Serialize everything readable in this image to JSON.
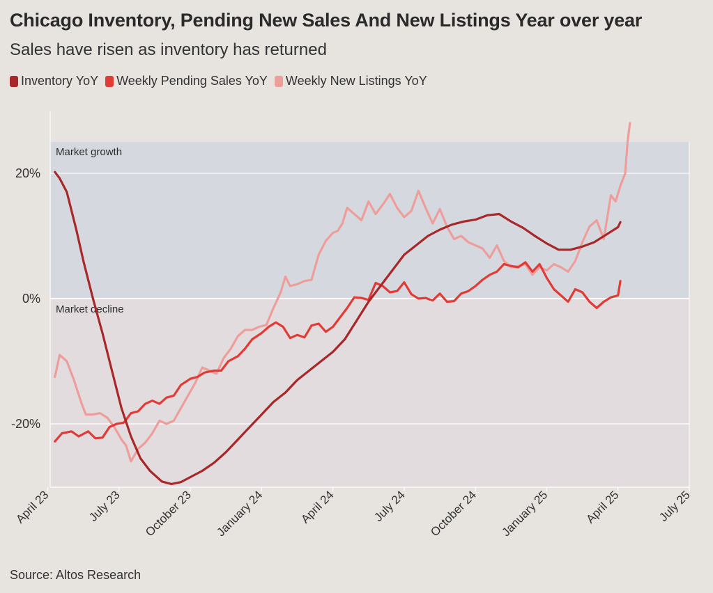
{
  "chart_data": {
    "type": "line",
    "title": "Chicago Inventory, Pending New Sales And New Listings Year over year",
    "subtitle": "Sales have risen as inventory has returned",
    "source": "Source: Altos Research",
    "xlabel": "",
    "ylabel": "",
    "xlim": [
      0,
      27
    ],
    "ylim": [
      -30,
      30
    ],
    "x_ticks": [
      {
        "label": "April 23",
        "x": 0
      },
      {
        "label": "July 23",
        "x": 3
      },
      {
        "label": "October 23",
        "x": 6
      },
      {
        "label": "January 24",
        "x": 9
      },
      {
        "label": "April 24",
        "x": 12
      },
      {
        "label": "July 24",
        "x": 15
      },
      {
        "label": "October 24",
        "x": 18
      },
      {
        "label": "January 25",
        "x": 21
      },
      {
        "label": "April 25",
        "x": 24
      },
      {
        "label": "July 25",
        "x": 27
      }
    ],
    "y_ticks": [
      {
        "label": "20%",
        "value": 20
      },
      {
        "label": "0%",
        "value": 0
      },
      {
        "label": "-20%",
        "value": -20
      }
    ],
    "regions": [
      {
        "label": "Market growth",
        "from": 0,
        "to": 25,
        "color": "#d5d9df"
      },
      {
        "label": "Market decline",
        "from": -30,
        "to": 0,
        "color": "#e2dcdf"
      }
    ],
    "legend": [
      "Inventory YoY",
      "Weekly Pending Sales YoY",
      "Weekly New Listings YoY"
    ],
    "series": [
      {
        "name": "Inventory YoY",
        "color": "#a82729",
        "points": [
          [
            0.3,
            20.2
          ],
          [
            0.5,
            19.2
          ],
          [
            0.8,
            17
          ],
          [
            1.2,
            11
          ],
          [
            1.5,
            6
          ],
          [
            1.9,
            0
          ],
          [
            2.3,
            -5.5
          ],
          [
            2.7,
            -11.5
          ],
          [
            3.1,
            -17.5
          ],
          [
            3.5,
            -22
          ],
          [
            3.9,
            -25.5
          ],
          [
            4.3,
            -27.5
          ],
          [
            4.8,
            -29.2
          ],
          [
            5.2,
            -29.6
          ],
          [
            5.6,
            -29.3
          ],
          [
            6.0,
            -28.5
          ],
          [
            6.5,
            -27.5
          ],
          [
            7.0,
            -26.2
          ],
          [
            7.5,
            -24.5
          ],
          [
            8.0,
            -22.5
          ],
          [
            8.5,
            -20.5
          ],
          [
            9.0,
            -18.5
          ],
          [
            9.5,
            -16.5
          ],
          [
            10.0,
            -15
          ],
          [
            10.5,
            -13
          ],
          [
            11.0,
            -11.5
          ],
          [
            11.5,
            -10
          ],
          [
            12.0,
            -8.5
          ],
          [
            12.5,
            -6.5
          ],
          [
            13.0,
            -3.5
          ],
          [
            13.5,
            -0.5
          ],
          [
            14.0,
            2
          ],
          [
            14.5,
            4.5
          ],
          [
            15.0,
            7
          ],
          [
            15.5,
            8.5
          ],
          [
            16.0,
            10
          ],
          [
            16.5,
            11
          ],
          [
            17.0,
            11.8
          ],
          [
            17.5,
            12.3
          ],
          [
            18.0,
            12.6
          ],
          [
            18.5,
            13.3
          ],
          [
            19.0,
            13.5
          ],
          [
            19.5,
            12.3
          ],
          [
            20.0,
            11.3
          ],
          [
            20.5,
            10
          ],
          [
            21.0,
            8.8
          ],
          [
            21.5,
            7.8
          ],
          [
            22.0,
            7.8
          ],
          [
            22.5,
            8.3
          ],
          [
            23.0,
            9
          ],
          [
            23.5,
            10.2
          ],
          [
            24.0,
            11.4
          ],
          [
            24.1,
            12.2
          ]
        ]
      },
      {
        "name": "Weekly Pending Sales YoY",
        "color": "#e23a35",
        "points": [
          [
            0.3,
            -22.8
          ],
          [
            0.6,
            -21.5
          ],
          [
            1.0,
            -21.2
          ],
          [
            1.3,
            -22
          ],
          [
            1.7,
            -21.2
          ],
          [
            2.0,
            -22.3
          ],
          [
            2.3,
            -22.2
          ],
          [
            2.6,
            -20.5
          ],
          [
            2.9,
            -20
          ],
          [
            3.2,
            -19.8
          ],
          [
            3.5,
            -18.3
          ],
          [
            3.8,
            -18
          ],
          [
            4.1,
            -16.8
          ],
          [
            4.4,
            -16.3
          ],
          [
            4.7,
            -16.8
          ],
          [
            5.0,
            -15.8
          ],
          [
            5.3,
            -15.5
          ],
          [
            5.6,
            -13.8
          ],
          [
            6.0,
            -12.8
          ],
          [
            6.3,
            -12.5
          ],
          [
            6.6,
            -11.8
          ],
          [
            7.0,
            -11.5
          ],
          [
            7.3,
            -11.5
          ],
          [
            7.6,
            -10
          ],
          [
            8.0,
            -9.2
          ],
          [
            8.3,
            -8
          ],
          [
            8.6,
            -6.5
          ],
          [
            9.0,
            -5.5
          ],
          [
            9.3,
            -4.5
          ],
          [
            9.6,
            -3.8
          ],
          [
            9.9,
            -4.5
          ],
          [
            10.2,
            -6.3
          ],
          [
            10.5,
            -5.8
          ],
          [
            10.8,
            -6.2
          ],
          [
            11.1,
            -4.3
          ],
          [
            11.4,
            -4
          ],
          [
            11.7,
            -5.3
          ],
          [
            12.0,
            -4.5
          ],
          [
            12.3,
            -3
          ],
          [
            12.6,
            -1.5
          ],
          [
            12.9,
            0.2
          ],
          [
            13.2,
            0.1
          ],
          [
            13.5,
            -0.2
          ],
          [
            13.8,
            2.5
          ],
          [
            14.1,
            2
          ],
          [
            14.4,
            1
          ],
          [
            14.7,
            1.2
          ],
          [
            15.0,
            2.6
          ],
          [
            15.3,
            0.7
          ],
          [
            15.6,
            0
          ],
          [
            15.9,
            0.1
          ],
          [
            16.2,
            -0.3
          ],
          [
            16.5,
            0.8
          ],
          [
            16.8,
            -0.5
          ],
          [
            17.1,
            -0.4
          ],
          [
            17.4,
            0.8
          ],
          [
            17.7,
            1.2
          ],
          [
            18.0,
            2
          ],
          [
            18.3,
            3
          ],
          [
            18.6,
            3.8
          ],
          [
            18.9,
            4.3
          ],
          [
            19.2,
            5.5
          ],
          [
            19.5,
            5.2
          ],
          [
            19.8,
            5
          ],
          [
            20.1,
            5.8
          ],
          [
            20.4,
            4.3
          ],
          [
            20.7,
            5.5
          ],
          [
            21.0,
            3.3
          ],
          [
            21.3,
            1.5
          ],
          [
            21.6,
            0.5
          ],
          [
            21.9,
            -0.5
          ],
          [
            22.2,
            1.5
          ],
          [
            22.5,
            1
          ],
          [
            22.8,
            -0.5
          ],
          [
            23.1,
            -1.5
          ],
          [
            23.4,
            -0.5
          ],
          [
            23.7,
            0.2
          ],
          [
            24.0,
            0.5
          ],
          [
            24.1,
            2.8
          ]
        ]
      },
      {
        "name": "Weekly New Listings YoY",
        "color": "#ee9e9a",
        "points": [
          [
            0.3,
            -12.5
          ],
          [
            0.5,
            -9
          ],
          [
            0.8,
            -10
          ],
          [
            1.1,
            -13
          ],
          [
            1.4,
            -16.5
          ],
          [
            1.6,
            -18.5
          ],
          [
            1.9,
            -18.5
          ],
          [
            2.2,
            -18.3
          ],
          [
            2.5,
            -19
          ],
          [
            2.8,
            -20.5
          ],
          [
            3.1,
            -22.5
          ],
          [
            3.3,
            -23.5
          ],
          [
            3.5,
            -26
          ],
          [
            3.8,
            -24
          ],
          [
            4.1,
            -23
          ],
          [
            4.4,
            -21.5
          ],
          [
            4.7,
            -19.5
          ],
          [
            5.0,
            -20
          ],
          [
            5.3,
            -19.5
          ],
          [
            5.6,
            -17.5
          ],
          [
            5.9,
            -15.5
          ],
          [
            6.2,
            -13.5
          ],
          [
            6.5,
            -11
          ],
          [
            6.8,
            -11.5
          ],
          [
            7.1,
            -12
          ],
          [
            7.4,
            -9.5
          ],
          [
            7.7,
            -8
          ],
          [
            8.0,
            -6
          ],
          [
            8.3,
            -5
          ],
          [
            8.6,
            -5
          ],
          [
            8.9,
            -4.5
          ],
          [
            9.2,
            -4.2
          ],
          [
            9.5,
            -1.5
          ],
          [
            9.8,
            1
          ],
          [
            10.0,
            3.5
          ],
          [
            10.2,
            2
          ],
          [
            10.5,
            2.3
          ],
          [
            10.8,
            2.8
          ],
          [
            11.1,
            3
          ],
          [
            11.4,
            7
          ],
          [
            11.7,
            9.2
          ],
          [
            12.0,
            10.5
          ],
          [
            12.2,
            10.8
          ],
          [
            12.4,
            12
          ],
          [
            12.6,
            14.5
          ],
          [
            12.9,
            13.5
          ],
          [
            13.2,
            12.5
          ],
          [
            13.5,
            15.5
          ],
          [
            13.8,
            13.5
          ],
          [
            14.1,
            15
          ],
          [
            14.4,
            16.7
          ],
          [
            14.7,
            14.5
          ],
          [
            15.0,
            13
          ],
          [
            15.3,
            14
          ],
          [
            15.6,
            17.2
          ],
          [
            15.9,
            14.5
          ],
          [
            16.2,
            12
          ],
          [
            16.5,
            14.3
          ],
          [
            16.8,
            11.5
          ],
          [
            17.1,
            9.5
          ],
          [
            17.4,
            10
          ],
          [
            17.7,
            9
          ],
          [
            18.0,
            8.5
          ],
          [
            18.3,
            8
          ],
          [
            18.6,
            6.5
          ],
          [
            18.9,
            8.5
          ],
          [
            19.2,
            6
          ],
          [
            19.5,
            5
          ],
          [
            19.8,
            5.2
          ],
          [
            20.1,
            5.5
          ],
          [
            20.4,
            3.8
          ],
          [
            20.7,
            5
          ],
          [
            21.0,
            4.5
          ],
          [
            21.3,
            5.5
          ],
          [
            21.6,
            5
          ],
          [
            21.9,
            4.3
          ],
          [
            22.2,
            6
          ],
          [
            22.5,
            9
          ],
          [
            22.8,
            11.5
          ],
          [
            23.1,
            12.5
          ],
          [
            23.4,
            9.5
          ],
          [
            23.7,
            16.5
          ],
          [
            23.9,
            15.5
          ],
          [
            24.1,
            18
          ],
          [
            24.3,
            20
          ],
          [
            24.4,
            25
          ],
          [
            24.5,
            28
          ]
        ]
      }
    ]
  }
}
